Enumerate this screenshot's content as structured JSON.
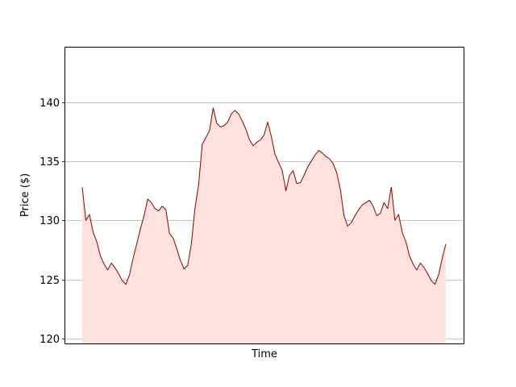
{
  "chart_data": {
    "type": "area",
    "title": "",
    "xlabel": "Time",
    "ylabel": "Price ($)",
    "ylim": [
      119.6,
      144.6
    ],
    "yticks": [
      120,
      125,
      130,
      135,
      140
    ],
    "grid": "y",
    "legend": "none",
    "colors": {
      "line": "#8b0000",
      "fill": "#ffe1de",
      "grid": "#b0b0b0"
    },
    "x": [
      0,
      5,
      10,
      15,
      20,
      25,
      30,
      35,
      40,
      45,
      50,
      55,
      60,
      65,
      70,
      75,
      80,
      85,
      90,
      95,
      100,
      105,
      110,
      115,
      120,
      125,
      130,
      135,
      140,
      145,
      150,
      155,
      160,
      165,
      170,
      175,
      180,
      185,
      190,
      195,
      200,
      205,
      210,
      215,
      220,
      225,
      230,
      235,
      240,
      245,
      250,
      255,
      260,
      265,
      270,
      275,
      280,
      285,
      290,
      295,
      300,
      305,
      310,
      315,
      320,
      325,
      330,
      335,
      340,
      345,
      350,
      355,
      360,
      365,
      370,
      375,
      380,
      385,
      390,
      395,
      400,
      405,
      410,
      415,
      420,
      425,
      430,
      435,
      440,
      445,
      450,
      455,
      460,
      465,
      470,
      475,
      480,
      485,
      490,
      495,
      500
    ],
    "series": [
      {
        "values": [
          132.8,
          130.0,
          130.5,
          129.0,
          128.2,
          127.0,
          126.3,
          125.8,
          126.4,
          126.0,
          125.5,
          124.9,
          124.6,
          125.4,
          126.8,
          128.0,
          129.3,
          130.4,
          131.8,
          131.5,
          131.0,
          130.8,
          131.2,
          130.9,
          128.9,
          128.5,
          127.6,
          126.6,
          125.9,
          126.2,
          128.0,
          131.0,
          133.0,
          136.4,
          137.0,
          137.6,
          139.5,
          138.2,
          137.9,
          138.0,
          138.3,
          139.0,
          139.3,
          139.0,
          138.4,
          137.7,
          136.8,
          136.3,
          136.6,
          136.8,
          137.2,
          138.3,
          137.1,
          135.6,
          134.9,
          134.2,
          132.5,
          133.8,
          134.2,
          133.1,
          133.2,
          133.8,
          134.5,
          135.0,
          135.5,
          135.9,
          135.7,
          135.4,
          135.2,
          134.8,
          134.0,
          132.6,
          130.4,
          129.5,
          129.8,
          130.4,
          130.9,
          131.3,
          131.5,
          131.7,
          131.2,
          130.4,
          130.6,
          131.5,
          131.0,
          132.8,
          130.0,
          130.5,
          129.0,
          128.2,
          127.0,
          126.3,
          125.8,
          126.4,
          126.0,
          125.5,
          124.9,
          124.6,
          125.4,
          126.8,
          128.0
        ]
      }
    ]
  }
}
